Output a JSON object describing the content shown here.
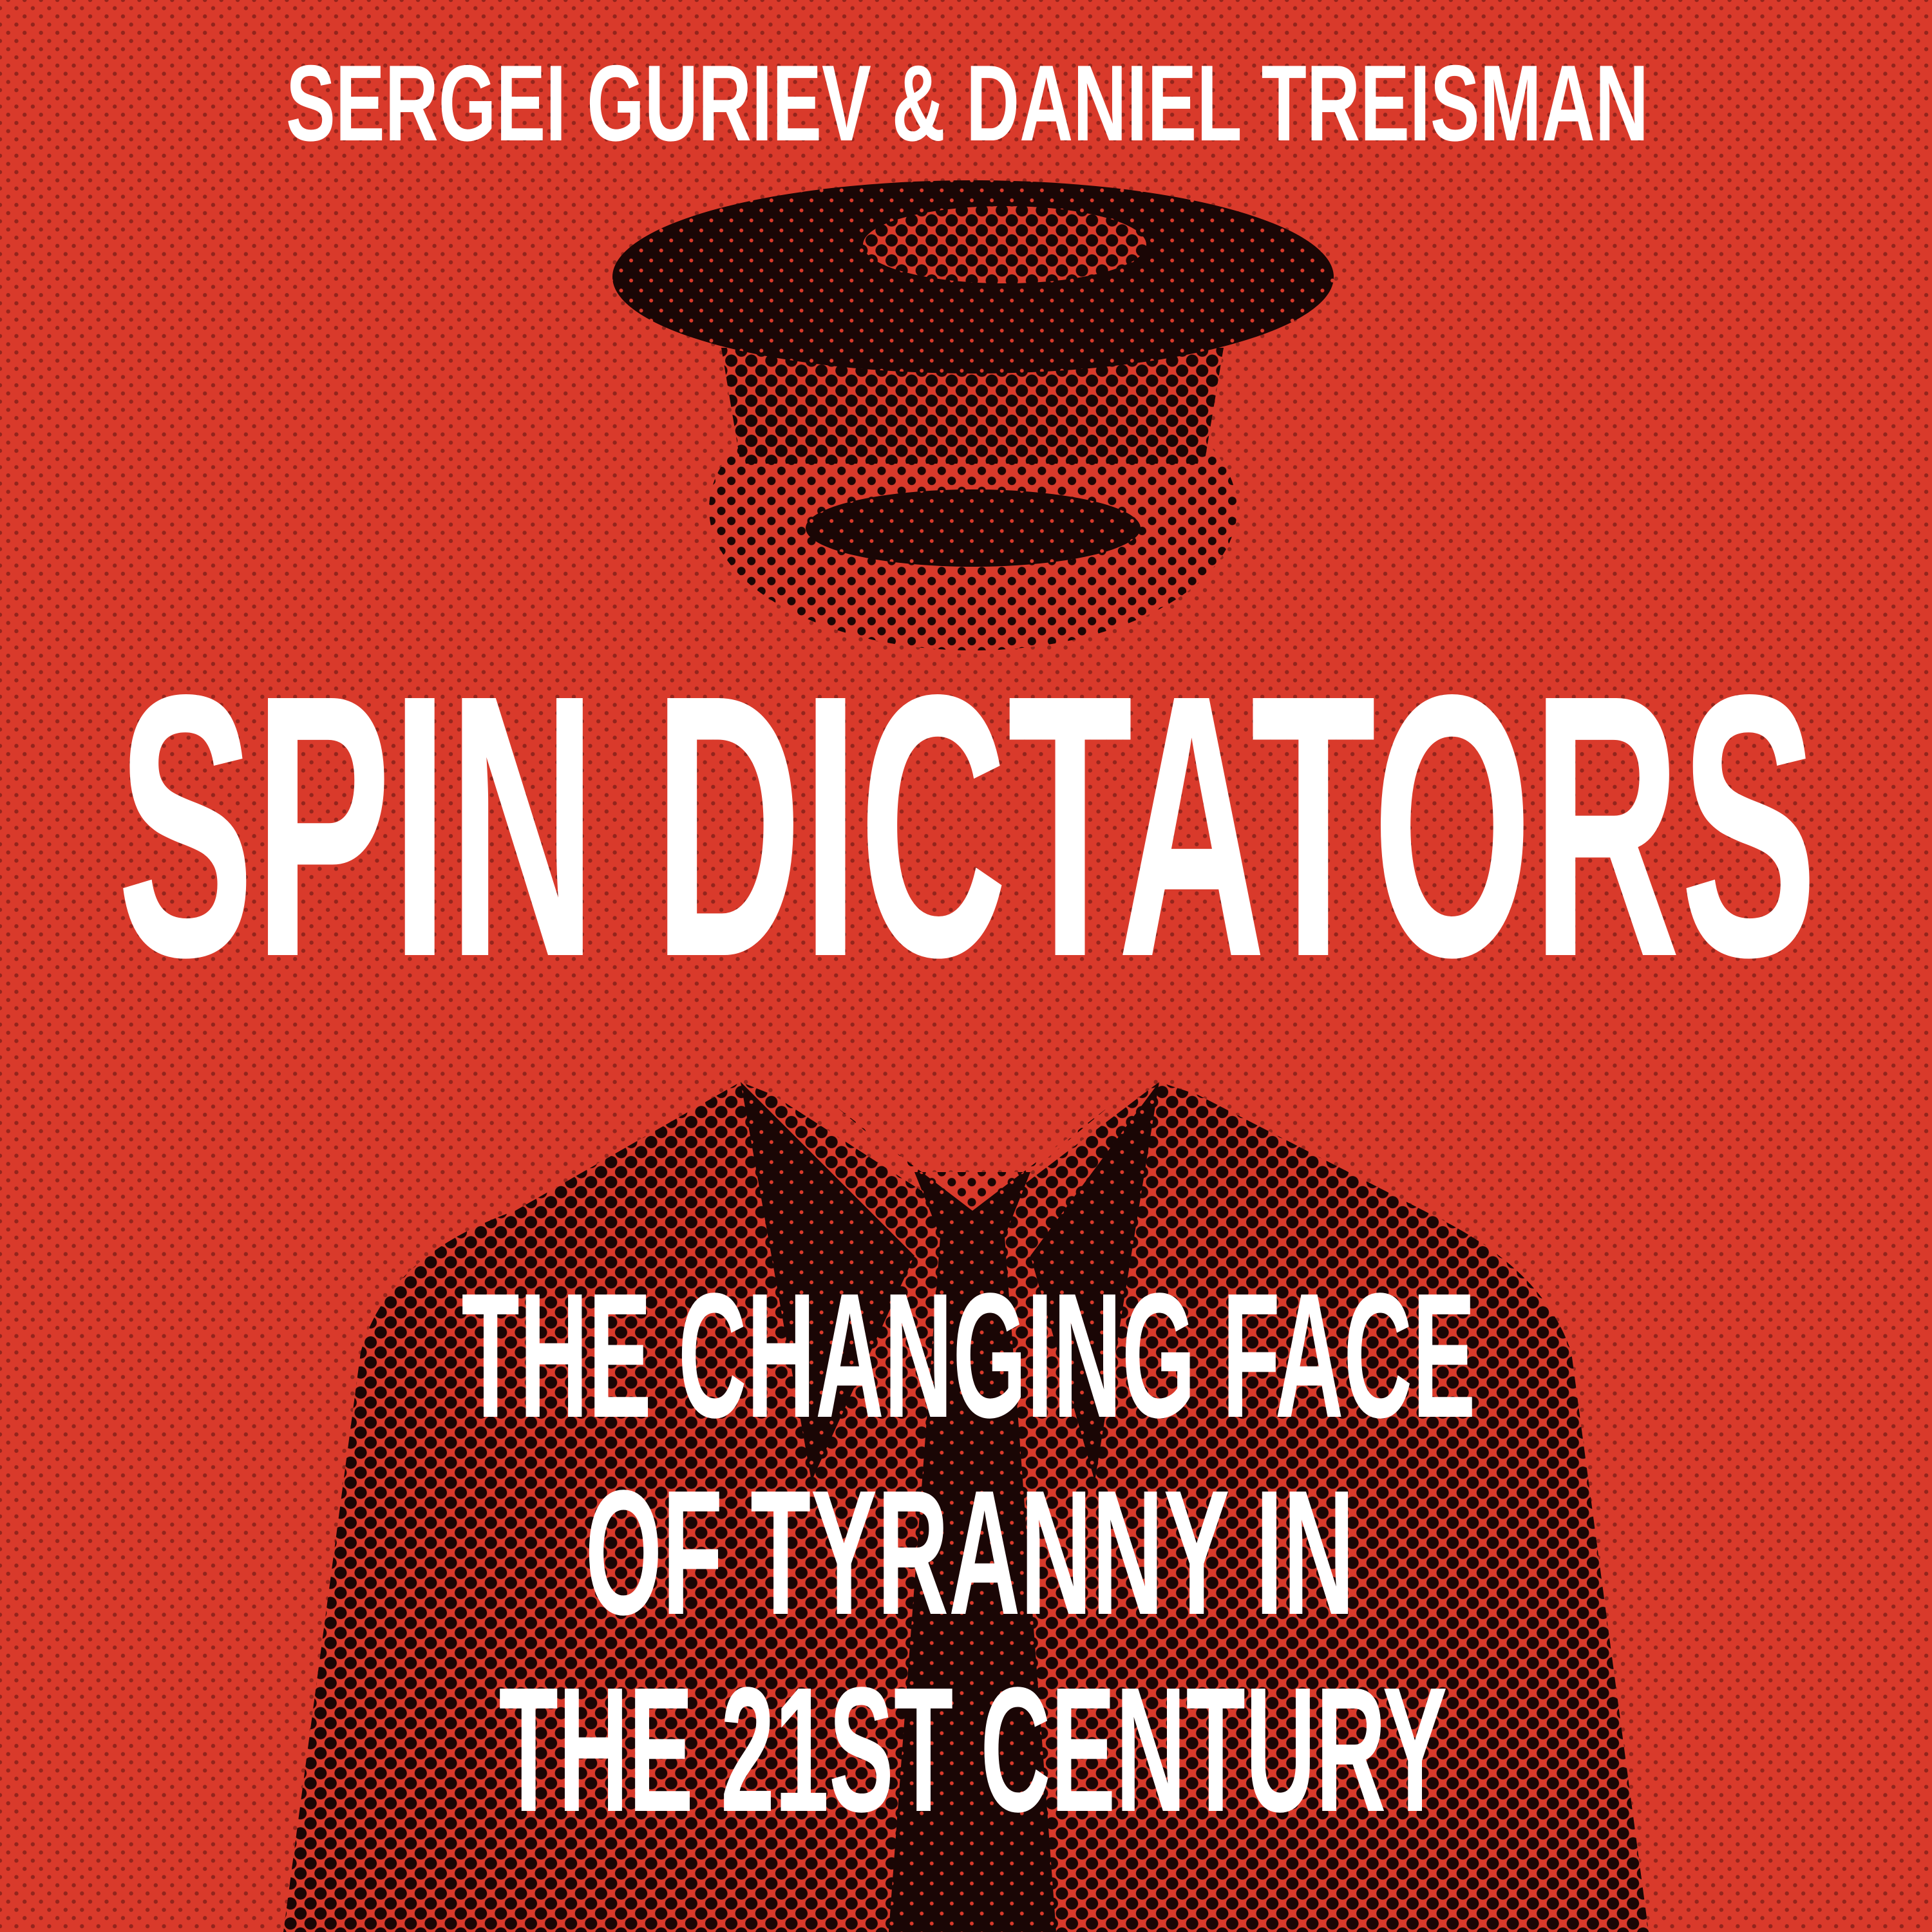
{
  "cover": {
    "authors": "SERGEI GURIEV & DANIEL TREISMAN",
    "title": "SPIN DICTATORS",
    "subtitle_lines": [
      "THE CHANGING FACE",
      "OF TYRANNY IN",
      "THE 21ST CENTURY"
    ],
    "colors": {
      "background": "#d93a2b",
      "halftone": "#1a0605",
      "text": "#ffffff"
    }
  }
}
